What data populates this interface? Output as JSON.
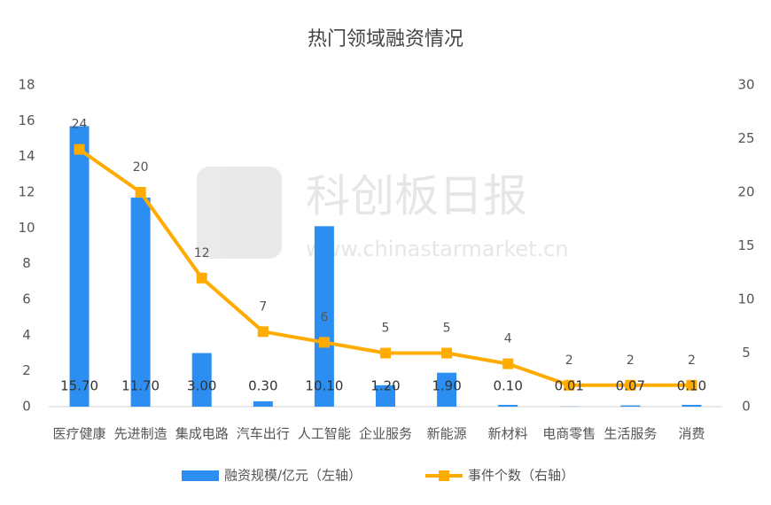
{
  "chart_data": {
    "type": "bar_line",
    "title": "热门领域融资情况",
    "watermark": {
      "title": "科创板日报",
      "url": "www.chinastarmarket.cn"
    },
    "categories": [
      "医疗健康",
      "先进制造",
      "集成电路",
      "汽车出行",
      "人工智能",
      "企业服务",
      "新能源",
      "新材料",
      "电商零售",
      "生活服务",
      "消费"
    ],
    "series": [
      {
        "name": "融资规模/亿元（左轴）",
        "type": "bar",
        "axis": "y",
        "color": "#2b8ef0",
        "values": [
          15.7,
          11.7,
          3.0,
          0.3,
          10.1,
          1.2,
          1.9,
          0.1,
          0.01,
          0.07,
          0.1
        ],
        "value_labels": [
          "15.70",
          "11.70",
          "3.00",
          "0.30",
          "10.10",
          "1.20",
          "1.90",
          "0.10",
          "0.01",
          "0.07",
          "0.10"
        ]
      },
      {
        "name": "事件个数（右轴）",
        "type": "line",
        "axis": "y2",
        "color": "#ffab00",
        "values": [
          24,
          20,
          12,
          7,
          6,
          5,
          5,
          4,
          2,
          2,
          2
        ]
      }
    ],
    "ylim": [
      0,
      18
    ],
    "yticks": [
      0,
      2,
      4,
      6,
      8,
      10,
      12,
      14,
      16,
      18
    ],
    "y2lim": [
      0,
      30
    ],
    "y2ticks": [
      0,
      5,
      10,
      15,
      20,
      25,
      30
    ],
    "grid": false
  }
}
